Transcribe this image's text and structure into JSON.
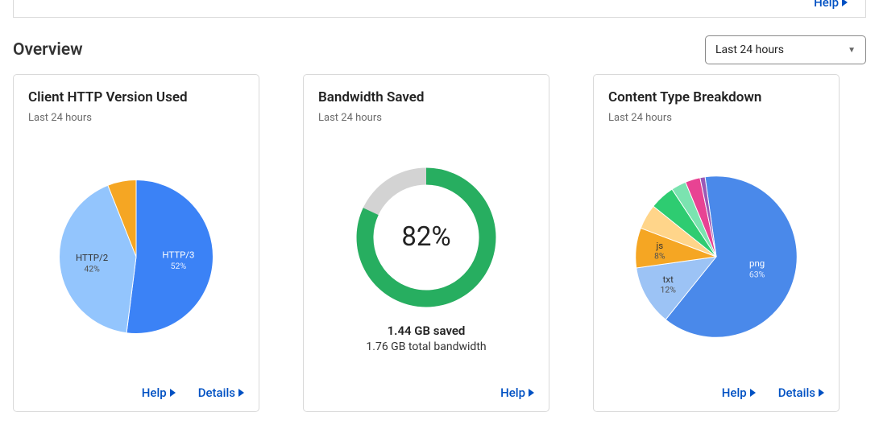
{
  "top_help": "Help",
  "header": {
    "title": "Overview"
  },
  "range_select": {
    "value": "Last 24 hours"
  },
  "link_labels": {
    "help": "Help",
    "details": "Details"
  },
  "card1": {
    "title": "Client HTTP Version Used",
    "subtitle": "Last 24 hours",
    "chart": {
      "type": "pie",
      "slices": [
        {
          "label": "HTTP/3",
          "pct": 52,
          "color": "#3b82f6"
        },
        {
          "label": "HTTP/2",
          "pct": 42,
          "color": "#93c5fd"
        },
        {
          "label": "",
          "pct": 6,
          "color": "#f5a623"
        }
      ],
      "background_color": "#ffffff",
      "label_fontsize": 12
    },
    "has_details": true
  },
  "card2": {
    "title": "Bandwidth Saved",
    "subtitle": "Last 24 hours",
    "chart": {
      "type": "donut",
      "pct": 82,
      "pct_text": "82%",
      "fg_color": "#27ae60",
      "bg_color": "#d3d3d3",
      "thickness": 22,
      "background_color": "#ffffff"
    },
    "saved_text": "1.44 GB saved",
    "total_text": "1.76 GB total bandwidth",
    "has_details": false
  },
  "card3": {
    "title": "Content Type Breakdown",
    "subtitle": "Last 24 hours",
    "chart": {
      "type": "pie",
      "slices": [
        {
          "label": "png",
          "pct": 63,
          "color": "#4a89ea"
        },
        {
          "label": "txt",
          "pct": 12,
          "color": "#9cc3f5"
        },
        {
          "label": "js",
          "pct": 8,
          "color": "#f5a623"
        },
        {
          "label": "",
          "pct": 5,
          "color": "#ffd58a"
        },
        {
          "label": "",
          "pct": 5,
          "color": "#2ecc71"
        },
        {
          "label": "",
          "pct": 3,
          "color": "#7be3b0"
        },
        {
          "label": "",
          "pct": 3,
          "color": "#e84393"
        },
        {
          "label": "",
          "pct": 1,
          "color": "#9b59b6"
        }
      ],
      "background_color": "#ffffff",
      "label_fontsize": 12
    },
    "has_details": true
  }
}
